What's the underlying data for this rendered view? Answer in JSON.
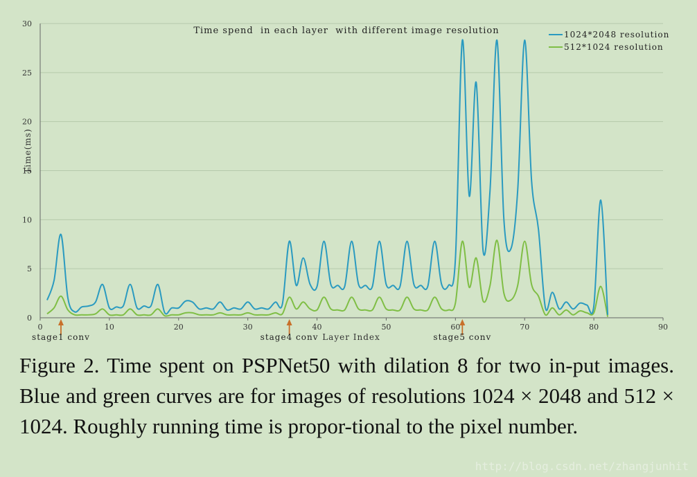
{
  "chart_data": {
    "type": "line",
    "title": "Time spend  in each layer  with different image resolution",
    "xlabel": "Layer Index",
    "ylabel": "Time(ms)",
    "xlim": [
      0,
      90
    ],
    "ylim": [
      0,
      30
    ],
    "x_ticks": [
      0,
      10,
      20,
      30,
      40,
      50,
      60,
      70,
      80,
      90
    ],
    "y_ticks": [
      0,
      5,
      10,
      15,
      20,
      25,
      30
    ],
    "grid": "horizontal",
    "legend_position": "top-right",
    "annotations": [
      {
        "x": 3,
        "label": "stage1 conv"
      },
      {
        "x": 36,
        "label": "stage4 conv"
      },
      {
        "x": 61,
        "label": "stage5 conv"
      }
    ],
    "series": [
      {
        "name": "1024*2048 resolution",
        "color": "#2a9ac0",
        "x": [
          1,
          2,
          3,
          4,
          5,
          6,
          7,
          8,
          9,
          10,
          11,
          12,
          13,
          14,
          15,
          16,
          17,
          18,
          19,
          20,
          21,
          22,
          23,
          24,
          25,
          26,
          27,
          28,
          29,
          30,
          31,
          32,
          33,
          34,
          35,
          36,
          37,
          38,
          39,
          40,
          41,
          42,
          43,
          44,
          45,
          46,
          47,
          48,
          49,
          50,
          51,
          52,
          53,
          54,
          55,
          56,
          57,
          58,
          59,
          60,
          61,
          62,
          63,
          64,
          65,
          66,
          67,
          68,
          69,
          70,
          71,
          72,
          73,
          74,
          75,
          76,
          77,
          78,
          79,
          80,
          81,
          82
        ],
        "y": [
          1.8,
          3.8,
          8.5,
          2.0,
          0.6,
          1.1,
          1.2,
          1.6,
          3.4,
          1.0,
          1.1,
          1.2,
          3.4,
          1.0,
          1.2,
          1.2,
          3.4,
          0.5,
          1.0,
          1.0,
          1.7,
          1.6,
          0.9,
          1.0,
          0.9,
          1.6,
          0.8,
          1.0,
          0.9,
          1.6,
          0.9,
          1.0,
          0.9,
          1.6,
          1.4,
          7.8,
          3.3,
          6.1,
          3.4,
          3.2,
          7.8,
          3.4,
          3.3,
          3.2,
          7.8,
          3.4,
          3.3,
          3.2,
          7.8,
          3.4,
          3.3,
          3.2,
          7.8,
          3.4,
          3.3,
          3.2,
          7.8,
          3.4,
          3.3,
          6.0,
          28.3,
          12.4,
          24.0,
          6.8,
          13.0,
          28.3,
          10.0,
          7.0,
          13.0,
          28.3,
          14.0,
          9.0,
          1.0,
          2.6,
          0.9,
          1.6,
          0.9,
          1.5,
          1.3,
          1.2,
          12.0,
          0.3
        ]
      },
      {
        "name": "512*1024 resolution",
        "color": "#7fbe45",
        "x": [
          1,
          2,
          3,
          4,
          5,
          6,
          7,
          8,
          9,
          10,
          11,
          12,
          13,
          14,
          15,
          16,
          17,
          18,
          19,
          20,
          21,
          22,
          23,
          24,
          25,
          26,
          27,
          28,
          29,
          30,
          31,
          32,
          33,
          34,
          35,
          36,
          37,
          38,
          39,
          40,
          41,
          42,
          43,
          44,
          45,
          46,
          47,
          48,
          49,
          50,
          51,
          52,
          53,
          54,
          55,
          56,
          57,
          58,
          59,
          60,
          61,
          62,
          63,
          64,
          65,
          66,
          67,
          68,
          69,
          70,
          71,
          72,
          73,
          74,
          75,
          76,
          77,
          78,
          79,
          80,
          81,
          82
        ],
        "y": [
          0.4,
          1.0,
          2.2,
          0.8,
          0.3,
          0.3,
          0.3,
          0.4,
          0.9,
          0.3,
          0.3,
          0.3,
          0.9,
          0.3,
          0.3,
          0.3,
          0.9,
          0.2,
          0.3,
          0.3,
          0.5,
          0.5,
          0.3,
          0.3,
          0.3,
          0.5,
          0.3,
          0.3,
          0.3,
          0.5,
          0.3,
          0.3,
          0.3,
          0.5,
          0.4,
          2.1,
          0.9,
          1.6,
          0.9,
          0.8,
          2.1,
          0.9,
          0.8,
          0.8,
          2.1,
          0.9,
          0.8,
          0.8,
          2.1,
          0.9,
          0.8,
          0.8,
          2.1,
          0.9,
          0.8,
          0.8,
          2.1,
          0.9,
          0.8,
          1.5,
          7.8,
          3.1,
          6.1,
          1.7,
          3.3,
          7.9,
          2.5,
          1.8,
          3.3,
          7.8,
          3.4,
          2.2,
          0.3,
          1.0,
          0.3,
          0.8,
          0.3,
          0.7,
          0.5,
          0.5,
          3.2,
          0.1
        ]
      }
    ]
  },
  "caption": {
    "text": "Figure 2. Time spent on PSPNet50 with dilation 8 for two in-put images. Blue and green curves are for images of resolutions 1024 × 2048 and 512 × 1024. Roughly running time is propor-tional to the pixel number."
  },
  "watermark": "http://blog.csdn.net/zhangjunhit",
  "colors": {
    "background": "#d3e4c8",
    "grid": "#b5c9ab",
    "annotation_arrow": "#c8702a"
  }
}
